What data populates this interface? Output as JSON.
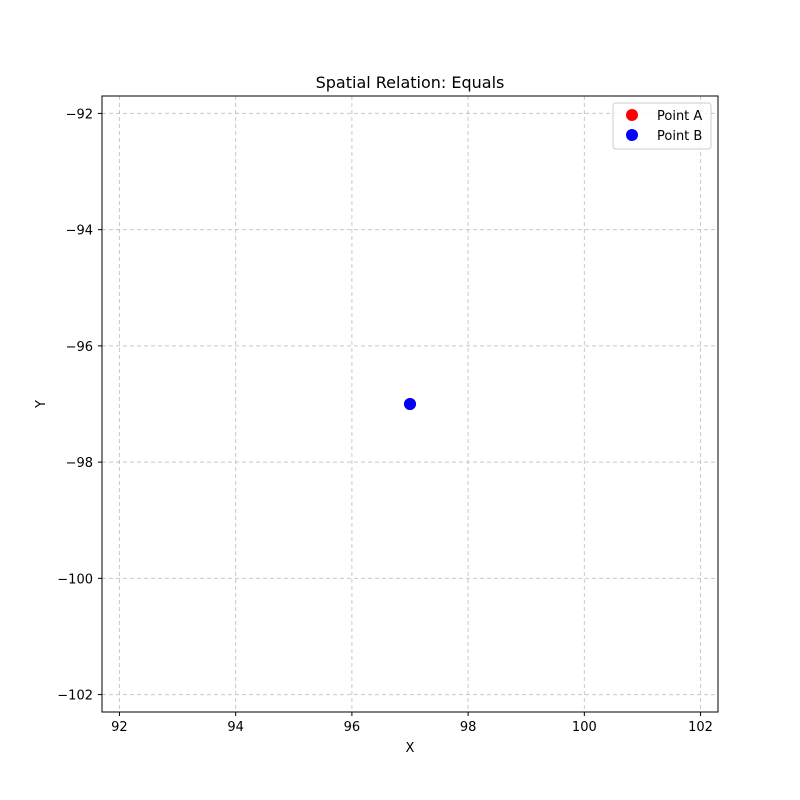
{
  "chart_data": {
    "type": "scatter",
    "title": "Spatial Relation: Equals",
    "xlabel": "X",
    "ylabel": "Y",
    "xlim": [
      91.7,
      102.3
    ],
    "ylim": [
      -102.3,
      -91.7
    ],
    "xticks": [
      92,
      94,
      96,
      98,
      100,
      102
    ],
    "yticks": [
      -92,
      -94,
      -96,
      -98,
      -100,
      -102
    ],
    "grid": true,
    "grid_style": "dashed",
    "legend_position": "top-right",
    "series": [
      {
        "name": "Point A",
        "color": "#ff0000",
        "points": [
          {
            "x": 97,
            "y": -97
          }
        ]
      },
      {
        "name": "Point B",
        "color": "#0000ff",
        "points": [
          {
            "x": 97,
            "y": -97
          }
        ]
      }
    ]
  }
}
